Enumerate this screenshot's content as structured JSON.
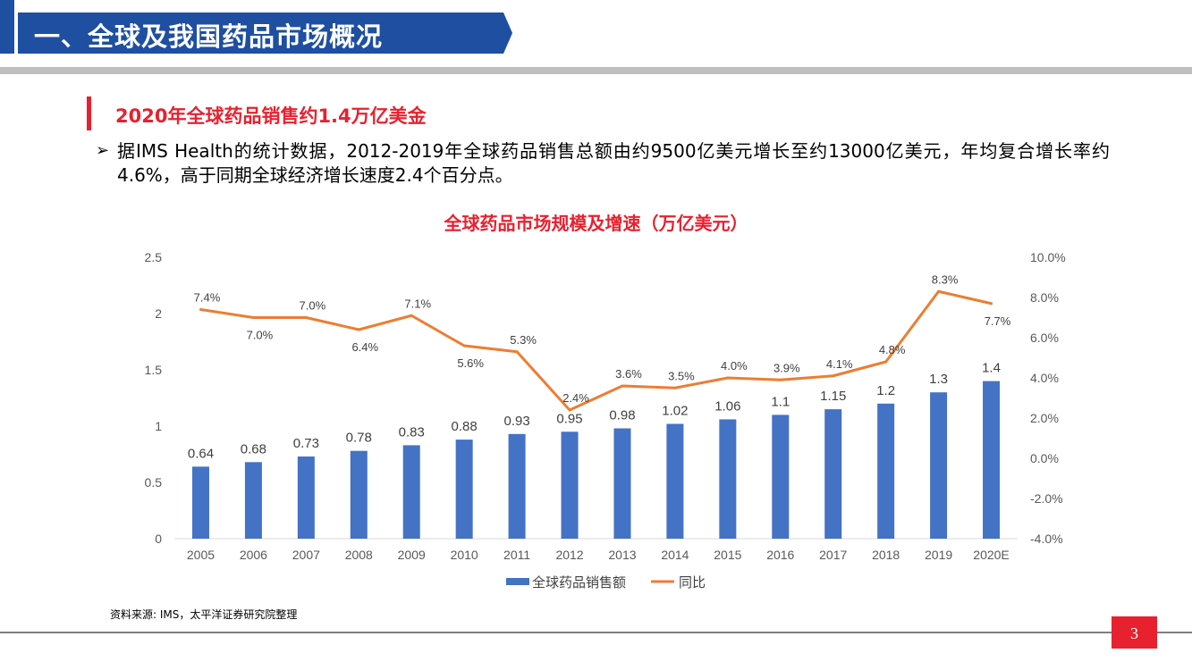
{
  "header": {
    "title": "一、全球及我国药品市场概况"
  },
  "section": {
    "subtitle": "2020年全球药品销售约1.4万亿美金",
    "bullet_symbol": "➢",
    "bullet_text": "据IMS Health的统计数据，2012-2019年全球药品销售总额由约9500亿美元增长至约13000亿美元，年均复合增长率约4.6%，高于同期全球经济增长速度2.4个百分点。"
  },
  "source": "资料来源: IMS，太平洋证券研究院整理",
  "page_number": "3",
  "colors": {
    "accent_red": "#e8212e",
    "banner_blue": "#1e4fa1",
    "bar_blue": "#4472c4",
    "line_orange": "#ed7d31"
  },
  "chart_data": {
    "type": "bar+line",
    "title": "全球药品市场规模及增速（万亿美元）",
    "categories": [
      "2005",
      "2006",
      "2007",
      "2008",
      "2009",
      "2010",
      "2011",
      "2012",
      "2013",
      "2014",
      "2015",
      "2016",
      "2017",
      "2018",
      "2019",
      "2020E"
    ],
    "series": [
      {
        "name": "全球药品销售额",
        "type": "bar",
        "axis": "left",
        "values": [
          0.64,
          0.68,
          0.73,
          0.78,
          0.83,
          0.88,
          0.93,
          0.95,
          0.98,
          1.02,
          1.06,
          1.1,
          1.15,
          1.2,
          1.3,
          1.4
        ],
        "labels": [
          "0.64",
          "0.68",
          "0.73",
          "0.78",
          "0.83",
          "0.88",
          "0.93",
          "0.95",
          "0.98",
          "1.02",
          "1.06",
          "1.1",
          "1.15",
          "1.2",
          "1.3",
          "1.4"
        ]
      },
      {
        "name": "同比",
        "type": "line",
        "axis": "right",
        "values": [
          7.4,
          7.0,
          7.0,
          6.4,
          7.1,
          5.6,
          5.3,
          2.4,
          3.6,
          3.5,
          4.0,
          3.9,
          4.1,
          4.8,
          8.3,
          7.7
        ],
        "labels": [
          "7.4%",
          "7.0%",
          "7.0%",
          "6.4%",
          "7.1%",
          "5.6%",
          "5.3%",
          "2.4%",
          "3.6%",
          "3.5%",
          "4.0%",
          "3.9%",
          "4.1%",
          "4.8%",
          "8.3%",
          "7.7%"
        ],
        "label_side": [
          "above",
          "below",
          "above",
          "below",
          "above",
          "below",
          "above",
          "above",
          "above",
          "above",
          "above",
          "above",
          "above",
          "above",
          "above",
          "below"
        ]
      }
    ],
    "y_left": {
      "min": 0,
      "max": 2.5,
      "ticks": [
        "0",
        "0.5",
        "1",
        "1.5",
        "2",
        "2.5"
      ]
    },
    "y_right": {
      "min": -4,
      "max": 10,
      "ticks": [
        "-4.0%",
        "-2.0%",
        "0.0%",
        "2.0%",
        "4.0%",
        "6.0%",
        "8.0%",
        "10.0%"
      ]
    },
    "legend_position": "bottom"
  }
}
